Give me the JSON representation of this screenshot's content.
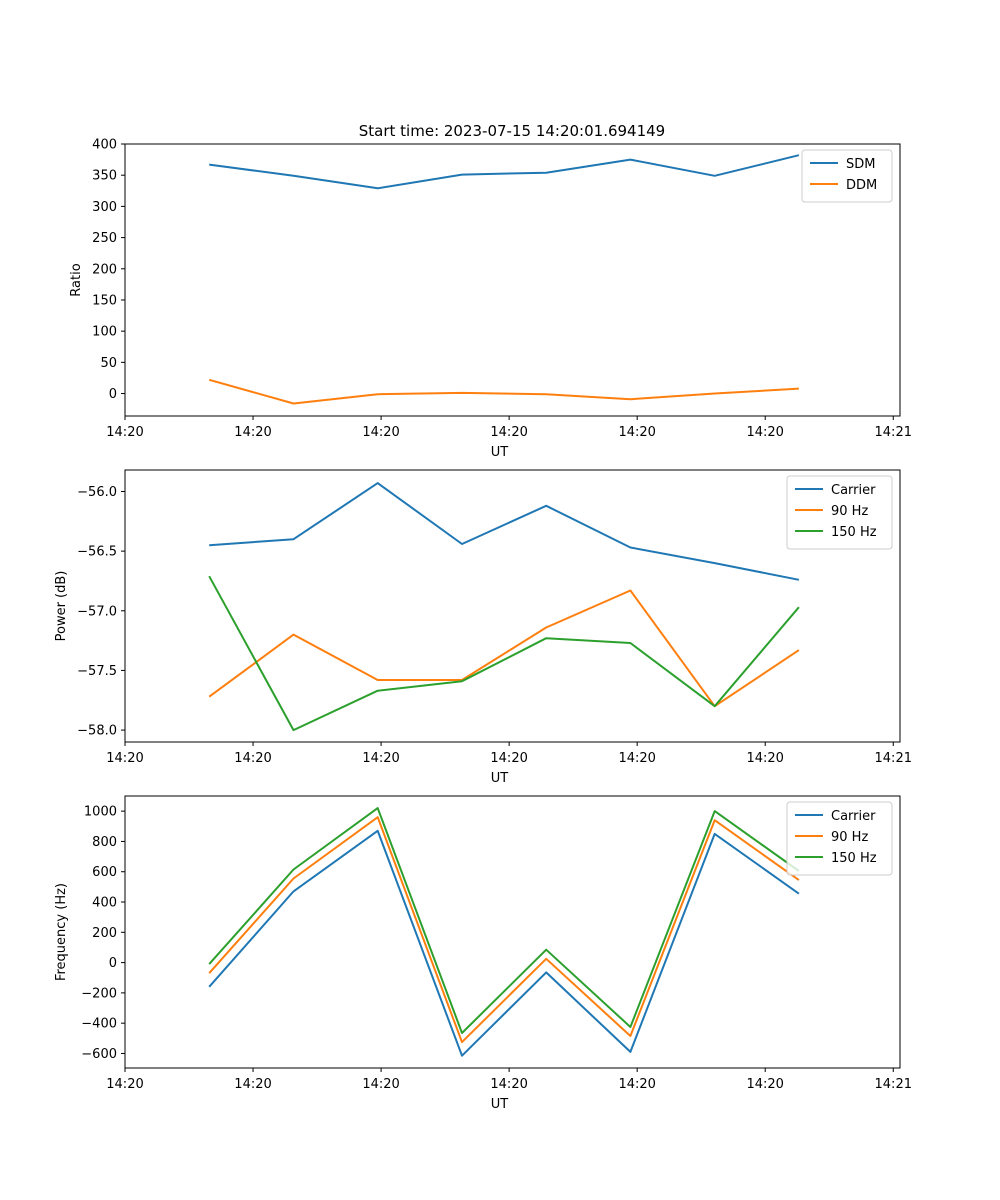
{
  "figure_title": "Start time: 2023-07-15 14:20:01.694149",
  "chart_data": [
    {
      "type": "line",
      "id": "ratio",
      "ylabel": "Ratio",
      "xlabel": "UT",
      "x": [
        0.5,
        1.0,
        1.5,
        2.0,
        2.5,
        3.0,
        3.5,
        4.0
      ],
      "xlim": [
        -0.0,
        4.6
      ],
      "xticks": [
        0,
        0.76,
        1.52,
        2.28,
        3.04,
        3.8,
        4.56
      ],
      "xtick_labels": [
        "14:20",
        "14:20",
        "14:20",
        "14:20",
        "14:20",
        "14:20",
        "14:21"
      ],
      "ylim": [
        -36,
        400
      ],
      "yticks": [
        0,
        50,
        100,
        150,
        200,
        250,
        300,
        350,
        400
      ],
      "ytick_labels": [
        "0",
        "50",
        "100",
        "150",
        "200",
        "250",
        "300",
        "350",
        "400"
      ],
      "legend_position": "top-right",
      "series": [
        {
          "name": "SDM",
          "color": "#1f77b4",
          "values": [
            367,
            349,
            329,
            351,
            354,
            375,
            349,
            382
          ]
        },
        {
          "name": "DDM",
          "color": "#ff7f0e",
          "values": [
            22,
            -16,
            -1,
            1,
            -1,
            -9,
            0,
            8
          ]
        }
      ]
    },
    {
      "type": "line",
      "id": "power",
      "ylabel": "Power (dB)",
      "xlabel": "UT",
      "x": [
        0.5,
        1.0,
        1.5,
        2.0,
        2.5,
        3.0,
        3.5,
        4.0
      ],
      "xlim": [
        -0.0,
        4.6
      ],
      "xticks": [
        0,
        0.76,
        1.52,
        2.28,
        3.04,
        3.8,
        4.56
      ],
      "xtick_labels": [
        "14:20",
        "14:20",
        "14:20",
        "14:20",
        "14:20",
        "14:20",
        "14:21"
      ],
      "ylim": [
        -58.1,
        -55.82
      ],
      "yticks": [
        -58.0,
        -57.5,
        -57.0,
        -56.5,
        -56.0
      ],
      "ytick_labels": [
        "−58.0",
        "−57.5",
        "−57.0",
        "−56.5",
        "−56.0"
      ],
      "legend_position": "top-right",
      "series": [
        {
          "name": "Carrier",
          "color": "#1f77b4",
          "values": [
            -56.45,
            -56.4,
            -55.93,
            -56.44,
            -56.12,
            -56.47,
            -56.6,
            -56.74
          ]
        },
        {
          "name": "90 Hz",
          "color": "#ff7f0e",
          "values": [
            -57.72,
            -57.2,
            -57.58,
            -57.58,
            -57.14,
            -56.83,
            -57.8,
            -57.33
          ]
        },
        {
          "name": "150 Hz",
          "color": "#2ca02c",
          "values": [
            -56.71,
            -58.0,
            -57.67,
            -57.59,
            -57.23,
            -57.27,
            -57.8,
            -56.97
          ]
        }
      ]
    },
    {
      "type": "line",
      "id": "frequency",
      "ylabel": "Frequency (Hz)",
      "xlabel": "UT",
      "x": [
        0.5,
        1.0,
        1.5,
        2.0,
        2.5,
        3.0,
        3.5,
        4.0
      ],
      "xlim": [
        -0.0,
        4.6
      ],
      "xticks": [
        0,
        0.76,
        1.52,
        2.28,
        3.04,
        3.8,
        4.56
      ],
      "xtick_labels": [
        "14:20",
        "14:20",
        "14:20",
        "14:20",
        "14:20",
        "14:20",
        "14:21"
      ],
      "ylim": [
        -696,
        1100
      ],
      "yticks": [
        -600,
        -400,
        -200,
        0,
        200,
        400,
        600,
        800,
        1000
      ],
      "ytick_labels": [
        "−600",
        "−400",
        "−200",
        "0",
        "200",
        "400",
        "600",
        "800",
        "1000"
      ],
      "legend_position": "top-right",
      "series": [
        {
          "name": "Carrier",
          "color": "#1f77b4",
          "values": [
            -160,
            470,
            870,
            -615,
            -65,
            -590,
            850,
            455
          ]
        },
        {
          "name": "90 Hz",
          "color": "#ff7f0e",
          "values": [
            -70,
            555,
            960,
            -525,
            25,
            -485,
            940,
            545
          ]
        },
        {
          "name": "150 Hz",
          "color": "#2ca02c",
          "values": [
            -10,
            615,
            1020,
            -465,
            85,
            -425,
            1000,
            605
          ]
        }
      ]
    }
  ]
}
